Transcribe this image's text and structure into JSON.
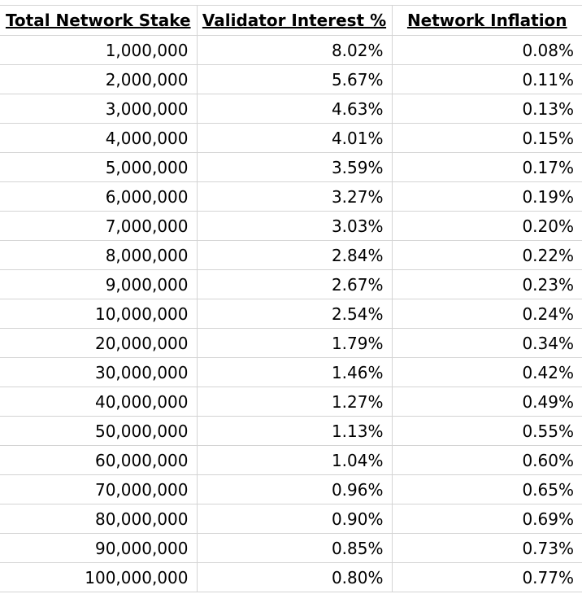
{
  "table": {
    "headers": [
      "Total Network Stake",
      "Validator Interest %",
      "Network Inflation"
    ],
    "rows": [
      [
        "1,000,000",
        "8.02%",
        "0.08%"
      ],
      [
        "2,000,000",
        "5.67%",
        "0.11%"
      ],
      [
        "3,000,000",
        "4.63%",
        "0.13%"
      ],
      [
        "4,000,000",
        "4.01%",
        "0.15%"
      ],
      [
        "5,000,000",
        "3.59%",
        "0.17%"
      ],
      [
        "6,000,000",
        "3.27%",
        "0.19%"
      ],
      [
        "7,000,000",
        "3.03%",
        "0.20%"
      ],
      [
        "8,000,000",
        "2.84%",
        "0.22%"
      ],
      [
        "9,000,000",
        "2.67%",
        "0.23%"
      ],
      [
        "10,000,000",
        "2.54%",
        "0.24%"
      ],
      [
        "20,000,000",
        "1.79%",
        "0.34%"
      ],
      [
        "30,000,000",
        "1.46%",
        "0.42%"
      ],
      [
        "40,000,000",
        "1.27%",
        "0.49%"
      ],
      [
        "50,000,000",
        "1.13%",
        "0.55%"
      ],
      [
        "60,000,000",
        "1.04%",
        "0.60%"
      ],
      [
        "70,000,000",
        "0.96%",
        "0.65%"
      ],
      [
        "80,000,000",
        "0.90%",
        "0.69%"
      ],
      [
        "90,000,000",
        "0.85%",
        "0.73%"
      ],
      [
        "100,000,000",
        "0.80%",
        "0.77%"
      ]
    ]
  },
  "colors": {
    "gridline": "#d4d4d4",
    "text": "#000000",
    "background": "#ffffff"
  }
}
